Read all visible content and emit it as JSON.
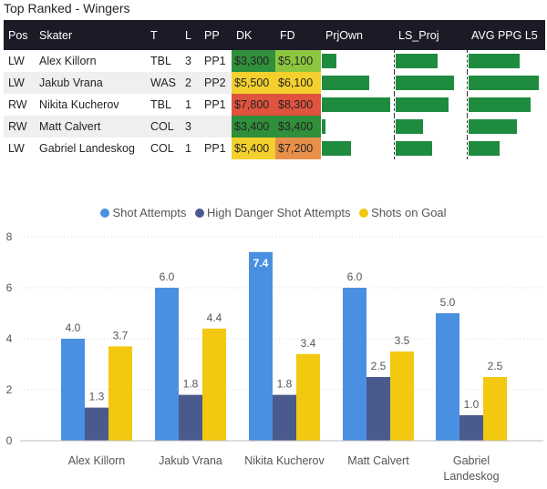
{
  "title": "Top Ranked - Wingers",
  "table": {
    "headers": [
      "Pos",
      "Skater",
      "T",
      "L",
      "PP",
      "DK",
      "FD",
      "PrjOwn",
      "LS_Proj",
      "AVG PPG L5"
    ],
    "rows": [
      {
        "pos": "LW",
        "skater": "Alex Killorn",
        "team": "TBL",
        "line": "3",
        "pp": "PP1",
        "dk": "$3,300",
        "fd": "$5,100",
        "dk_color": "#2f8f3a",
        "fd_color": "#8cc63f",
        "prjown": 0.21,
        "ls_proj": 0.7,
        "avg_ppg": 0.72
      },
      {
        "pos": "LW",
        "skater": "Jakub Vrana",
        "team": "WAS",
        "line": "2",
        "pp": "PP2",
        "dk": "$5,500",
        "fd": "$6,100",
        "dk_color": "#f3d02d",
        "fd_color": "#f3d02d",
        "prjown": 0.69,
        "ls_proj": 0.97,
        "avg_ppg": 0.99
      },
      {
        "pos": "RW",
        "skater": "Nikita Kucherov",
        "team": "TBL",
        "line": "1",
        "pp": "PP1",
        "dk": "$7,800",
        "fd": "$8,300",
        "dk_color": "#e0533e",
        "fd_color": "#e0533e",
        "prjown": 0.99,
        "ls_proj": 0.88,
        "avg_ppg": 0.87
      },
      {
        "pos": "RW",
        "skater": "Matt Calvert",
        "team": "COL",
        "line": "3",
        "pp": "",
        "dk": "$3,400",
        "fd": "$3,400",
        "dk_color": "#2f8f3a",
        "fd_color": "#2f8f3a",
        "prjown": 0.05,
        "ls_proj": 0.46,
        "avg_ppg": 0.68
      },
      {
        "pos": "LW",
        "skater": "Gabriel Landeskog",
        "team": "COL",
        "line": "1",
        "pp": "PP1",
        "dk": "$5,400",
        "fd": "$7,200",
        "dk_color": "#f3d02d",
        "fd_color": "#e8904a",
        "prjown": 0.42,
        "ls_proj": 0.6,
        "avg_ppg": 0.43
      }
    ]
  },
  "chart_data": {
    "type": "bar",
    "categories": [
      "Alex Killorn",
      "Jakub Vrana",
      "Nikita Kucherov",
      "Matt Calvert",
      "Gabriel Landeskog"
    ],
    "series": [
      {
        "name": "Shot Attempts",
        "color": "#4a90e2",
        "values": [
          4.0,
          6.0,
          7.4,
          6.0,
          5.0
        ],
        "labels": [
          "4.0",
          "6.0",
          "7.4",
          "6.0",
          "5.0"
        ]
      },
      {
        "name": "High Danger Shot Attempts",
        "color": "#4b5a8c",
        "values": [
          1.3,
          1.8,
          1.8,
          2.5,
          1.0
        ],
        "labels": [
          "1.3",
          "1.8",
          "1.8",
          "2.5",
          "1.0"
        ]
      },
      {
        "name": "Shots on Goal",
        "color": "#f2c811",
        "values": [
          3.7,
          4.4,
          3.4,
          3.5,
          2.5
        ],
        "labels": [
          "3.7",
          "4.4",
          "3.4",
          "3.5",
          "2.5"
        ]
      }
    ],
    "y_ticks": [
      "0",
      "2",
      "4",
      "6",
      "8"
    ],
    "ylim": [
      0,
      8
    ],
    "highlight_label": "7.4",
    "legend": "top-center",
    "title": "",
    "xlabel": "",
    "ylabel": ""
  }
}
